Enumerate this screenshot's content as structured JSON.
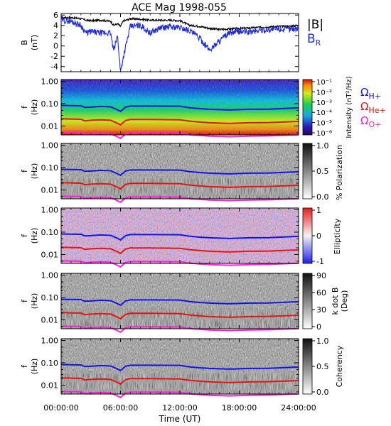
{
  "title": "ACE Mag 1998-055",
  "colors": {
    "B_total": "#000000",
    "B_R": "#1f2bd6",
    "H_plus": "#1414e6",
    "He_plus": "#e61414",
    "O_plus": "#ff22d0"
  },
  "time_axis": {
    "label": "Time (UT)",
    "ticks": [
      "00:00:00",
      "06:00:00",
      "12:00:00",
      "18:00:00",
      "24:00:00"
    ],
    "range_hours": [
      0,
      24
    ]
  },
  "panels": {
    "field": {
      "ylabel_line1": "B",
      "ylabel_line2": "(nT)",
      "yticks": [
        "6",
        "4",
        "2",
        "0",
        "-2",
        "-4"
      ],
      "legend_total": "|B|",
      "legend_radial": "B",
      "legend_radial_sub": "R"
    },
    "freq_ticks": [
      "1.00",
      "0.10",
      "0.01"
    ],
    "freq_ylabel_line1": "f",
    "freq_ylabel_line2": "(Hz)",
    "intensity": {
      "cbar_label": "Intensity (nT²/Hz)",
      "cbar_ticks": [
        "10⁻¹",
        "10⁻²",
        "10⁻³",
        "10⁻⁴",
        "10⁻⁵",
        "10⁻⁶"
      ],
      "legend": [
        {
          "base": "Ω",
          "sub": "H+"
        },
        {
          "base": "Ω",
          "sub": "He+"
        },
        {
          "base": "Ω",
          "sub": "O+"
        }
      ]
    },
    "polarization": {
      "cbar_label": "% Polarization",
      "cbar_ticks": [
        "1.0",
        "0.5",
        "0.0"
      ]
    },
    "ellipticity": {
      "cbar_label": "Ellipticity",
      "cbar_ticks": [
        "1",
        "0",
        "-1"
      ]
    },
    "kdotb": {
      "cbar_label_line1": "k dot B",
      "cbar_label_line2": "(Deg)",
      "cbar_ticks": [
        "90",
        "60",
        "30",
        "0"
      ]
    },
    "coherency": {
      "cbar_label": "Coherency",
      "cbar_ticks": [
        "1.0",
        "0.5",
        "0.0"
      ]
    }
  },
  "chart_data": [
    {
      "type": "line",
      "title": "ACE Mag 1998-055",
      "ylabel": "B (nT)",
      "xlabel": "Time (UT)",
      "ylim": [
        -5,
        6.3
      ],
      "x_hours": [
        0,
        1,
        2,
        2.5,
        3,
        4,
        5,
        5.3,
        5.7,
        6,
        6.3,
        6.6,
        7,
        8,
        9,
        10,
        11,
        12,
        13,
        14,
        15,
        16,
        17,
        18,
        19,
        20,
        21,
        22,
        23,
        24
      ],
      "series": [
        {
          "name": "|B|",
          "values": [
            5.5,
            5.5,
            5.3,
            5.0,
            4.9,
            5.0,
            4.8,
            4.0,
            4.3,
            3.8,
            4.9,
            5.0,
            5.3,
            5.2,
            5.0,
            5.0,
            5.0,
            4.9,
            4.0,
            3.8,
            3.4,
            3.2,
            3.3,
            3.4,
            3.5,
            3.6,
            3.7,
            3.8,
            3.8,
            4.0
          ]
        },
        {
          "name": "B_R",
          "values": [
            5.0,
            4.8,
            4.0,
            2.5,
            2.8,
            2.5,
            2.5,
            -1.0,
            2.0,
            -5.0,
            -2.0,
            0.5,
            3.8,
            4.0,
            2.5,
            3.5,
            3.7,
            3.6,
            3.0,
            1.5,
            -0.8,
            1.0,
            2.5,
            2.8,
            2.7,
            3.0,
            3.2,
            3.3,
            3.2,
            3.5
          ]
        }
      ]
    },
    {
      "type": "line",
      "ylabel": "f (Hz)",
      "ylim": [
        0.004,
        1.2
      ],
      "yscale": "log",
      "x_hours": [
        0,
        2,
        2.4,
        3,
        4,
        5,
        5.5,
        6,
        6.5,
        7,
        9,
        12,
        13,
        14,
        15,
        17,
        19,
        21,
        24
      ],
      "series": [
        {
          "name": "ΩH+",
          "values": [
            0.083,
            0.08,
            0.068,
            0.07,
            0.075,
            0.072,
            0.058,
            0.045,
            0.07,
            0.078,
            0.078,
            0.077,
            0.066,
            0.06,
            0.056,
            0.052,
            0.056,
            0.057,
            0.065
          ]
        },
        {
          "name": "ΩHe+",
          "values": [
            0.021,
            0.02,
            0.017,
            0.018,
            0.019,
            0.018,
            0.0145,
            0.0112,
            0.0175,
            0.0195,
            0.0195,
            0.019,
            0.0165,
            0.015,
            0.014,
            0.013,
            0.014,
            0.0143,
            0.016
          ]
        },
        {
          "name": "ΩO+",
          "values": [
            0.0052,
            0.005,
            0.0043,
            0.0045,
            0.0047,
            0.0045,
            0.0036,
            0.0028,
            0.0044,
            0.0049,
            0.0049,
            0.0048,
            0.0041,
            0.0038,
            0.0035,
            0.0033,
            0.0035,
            0.0036,
            0.0041
          ]
        }
      ]
    }
  ]
}
